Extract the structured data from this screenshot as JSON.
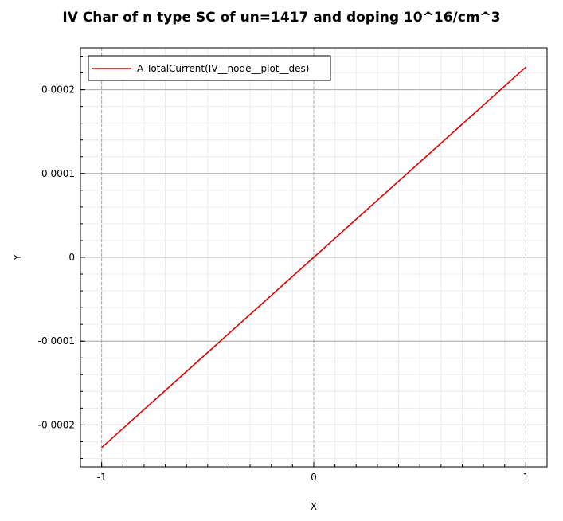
{
  "chart_data": {
    "type": "line",
    "title": "IV Char of n type SC of un=1417 and doping 10^16/cm^3",
    "xlabel": "X",
    "ylabel": "Y",
    "xlim": [
      -1.1,
      1.1
    ],
    "ylim": [
      -0.00025,
      0.00025
    ],
    "x_ticks": [
      -1,
      0,
      1
    ],
    "x_tick_labels": [
      "-1",
      "0",
      "1"
    ],
    "y_ticks": [
      -0.0002,
      -0.0001,
      0,
      0.0001,
      0.0002
    ],
    "y_tick_labels": [
      "-0.0002",
      "-0.0001",
      "0",
      "0.0001",
      "0.0002"
    ],
    "grid": true,
    "legend_position": "top-left",
    "series": [
      {
        "name": "A TotalCurrent(IV__node__plot__des)",
        "color": "#e00000",
        "x": [
          -1,
          -0.5,
          0,
          0.5,
          1
        ],
        "y": [
          -0.000227,
          -0.0001135,
          0,
          0.0001135,
          0.000227
        ]
      }
    ]
  }
}
